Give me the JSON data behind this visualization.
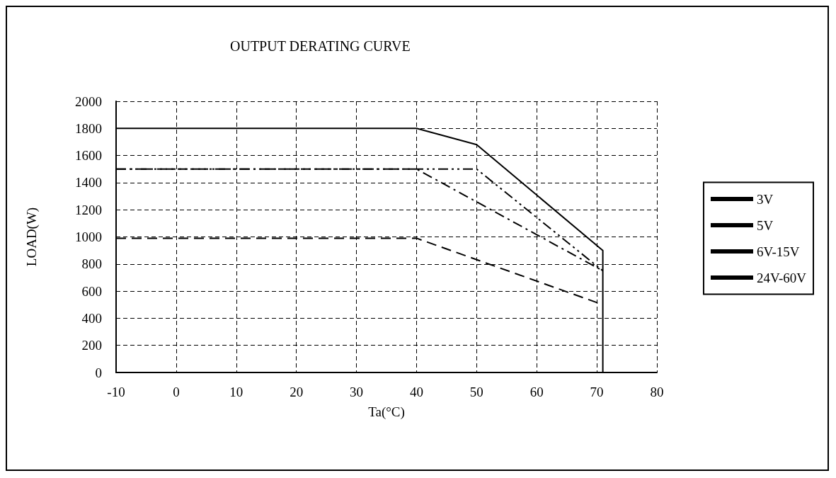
{
  "chart_data": {
    "type": "line",
    "title": "OUTPUT DERATING CURVE",
    "xlabel": "Ta(°C)",
    "ylabel": "LOAD(W)",
    "xlim": [
      -10,
      80
    ],
    "xticks": [
      -10,
      0,
      10,
      20,
      30,
      40,
      50,
      60,
      70,
      80
    ],
    "ylim": [
      0,
      2000
    ],
    "yticks": [
      0,
      200,
      400,
      600,
      800,
      1000,
      1200,
      1400,
      1600,
      1800,
      2000
    ],
    "grid": true,
    "legend": "right",
    "marker": "none",
    "series": [
      {
        "name": "3V",
        "color": "#000000",
        "line_style": "dashed",
        "x": [
          -10,
          40,
          71
        ],
        "values": [
          990,
          990,
          500
        ]
      },
      {
        "name": "5V",
        "color": "#000000",
        "line_style": "dashdot",
        "x": [
          -10,
          40,
          71
        ],
        "values": [
          1500,
          1500,
          750
        ]
      },
      {
        "name": "6V-15V",
        "color": "#000000",
        "line_style": "dashdotdot",
        "x": [
          -10,
          50,
          71
        ],
        "values": [
          1500,
          1500,
          750
        ]
      },
      {
        "name": "24V-60V",
        "color": "#000000",
        "line_style": "solid",
        "x": [
          -10,
          40,
          50,
          71,
          71
        ],
        "values": [
          1800,
          1800,
          1680,
          900,
          0
        ]
      }
    ]
  }
}
